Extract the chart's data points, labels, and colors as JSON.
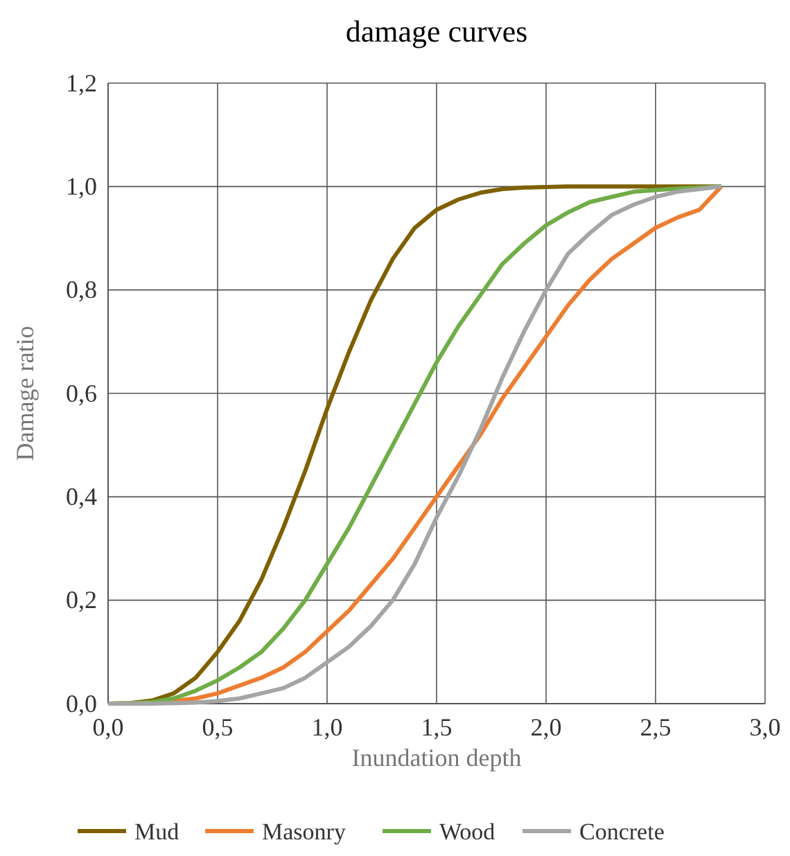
{
  "chart_data": {
    "type": "line",
    "title": "damage curves",
    "xlabel": "Inundation depth",
    "ylabel": "Damage ratio",
    "x": [
      0,
      0.1,
      0.2,
      0.3,
      0.4,
      0.5,
      0.6,
      0.7,
      0.8,
      0.9,
      1.0,
      1.1,
      1.2,
      1.3,
      1.4,
      1.5,
      1.6,
      1.7,
      1.8,
      1.9,
      2.0,
      2.1,
      2.2,
      2.3,
      2.4,
      2.5,
      2.6,
      2.7,
      2.8
    ],
    "series": [
      {
        "name": "Mud",
        "color": "#7f6000",
        "values": [
          0,
          0.001,
          0.006,
          0.02,
          0.05,
          0.1,
          0.16,
          0.24,
          0.34,
          0.45,
          0.57,
          0.68,
          0.78,
          0.86,
          0.92,
          0.955,
          0.975,
          0.988,
          0.995,
          0.998,
          0.999,
          1,
          1,
          1,
          1,
          1,
          1,
          1,
          1
        ]
      },
      {
        "name": "Masonry",
        "color": "#ed7d31",
        "values": [
          null,
          null,
          0.002,
          0.005,
          0.01,
          0.02,
          0.035,
          0.05,
          0.07,
          0.1,
          0.14,
          0.18,
          0.23,
          0.28,
          0.34,
          0.4,
          0.46,
          0.52,
          0.59,
          0.65,
          0.71,
          0.77,
          0.82,
          0.86,
          0.89,
          0.92,
          0.94,
          0.955,
          1
        ]
      },
      {
        "name": "Wood",
        "color": "#70ad47",
        "values": [
          0,
          0.001,
          0.003,
          0.01,
          0.025,
          0.045,
          0.07,
          0.1,
          0.145,
          0.2,
          0.27,
          0.34,
          0.42,
          0.5,
          0.58,
          0.66,
          0.73,
          0.79,
          0.85,
          0.89,
          0.925,
          0.95,
          0.97,
          0.98,
          0.99,
          0.993,
          0.996,
          0.998,
          1
        ]
      },
      {
        "name": "Concrete",
        "color": "#a5a5a5",
        "values": [
          0,
          0,
          0,
          0.001,
          0.002,
          0.005,
          0.01,
          0.02,
          0.03,
          0.05,
          0.08,
          0.11,
          0.15,
          0.2,
          0.27,
          0.36,
          0.44,
          0.53,
          0.63,
          0.72,
          0.8,
          0.87,
          0.91,
          0.945,
          0.965,
          0.98,
          0.99,
          0.995,
          1
        ]
      }
    ],
    "xlim": [
      0,
      3
    ],
    "xticks": [
      {
        "value": 0,
        "label": "0,0"
      },
      {
        "value": 0.5,
        "label": "0,5"
      },
      {
        "value": 1,
        "label": "1,0"
      },
      {
        "value": 1.5,
        "label": "1,5"
      },
      {
        "value": 2,
        "label": "2,0"
      },
      {
        "value": 2.5,
        "label": "2,5"
      },
      {
        "value": 3,
        "label": "3,0"
      }
    ],
    "ylim": [
      0,
      1.2
    ],
    "yticks": [
      {
        "value": 0,
        "label": "0,0"
      },
      {
        "value": 0.2,
        "label": "0,2"
      },
      {
        "value": 0.4,
        "label": "0,4"
      },
      {
        "value": 0.6,
        "label": "0,6"
      },
      {
        "value": 0.8,
        "label": "0,8"
      },
      {
        "value": 1,
        "label": "1,0"
      },
      {
        "value": 1.2,
        "label": "1,2"
      }
    ],
    "grid": true,
    "legend": "bottom",
    "marker": "none",
    "line_style": "solid"
  }
}
